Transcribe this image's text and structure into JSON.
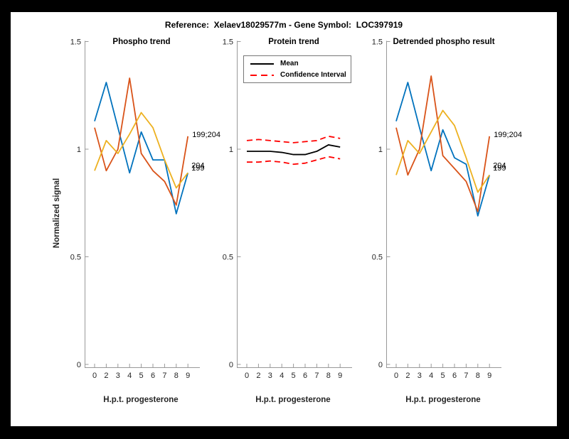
{
  "figure": {
    "title": "Reference:  Xelaev18029577m - Gene Symbol:  LOC397919",
    "background_color": "#000000",
    "paper_color": "#ffffff"
  },
  "palette": {
    "blue": "#0072BD",
    "orange": "#D95319",
    "yellow": "#EDB120",
    "red": "#FF0000",
    "black": "#000000",
    "axis_line": "#999999",
    "tick_text": "#262626"
  },
  "legend": {
    "items": [
      {
        "label": "Mean",
        "style": "solid",
        "color": "#000000"
      },
      {
        "label": "Confidence Interval",
        "style": "dashed",
        "color": "#FF0000"
      }
    ],
    "position": "top-left-of-middle-plot"
  },
  "axis_shared": {
    "xlabel": "H.p.t. progesterone",
    "ylabel": "Normalized signal",
    "x_tick_labels": [
      "0",
      "2",
      "3",
      "4",
      "5",
      "6",
      "7",
      "8",
      "9"
    ],
    "y_tick_labels": [
      "0",
      "0.5",
      "1",
      "1.5"
    ],
    "y_ticks": [
      0,
      0.5,
      1,
      1.5
    ],
    "ylim": [
      0,
      1.5
    ],
    "grid": false
  },
  "chart_data": [
    {
      "type": "line",
      "title": "Phospho trend",
      "x_labels": [
        "0",
        "2",
        "3",
        "4",
        "5",
        "6",
        "7",
        "8",
        "9"
      ],
      "xlabel": "H.p.t. progesterone",
      "ylabel": "Normalized signal",
      "ylim": [
        0,
        1.5
      ],
      "yticks": [
        0,
        0.5,
        1,
        1.5
      ],
      "series": [
        {
          "name": "phospho-site-blue",
          "color": "#0072BD",
          "dash": "none",
          "values": [
            1.13,
            1.31,
            1.1,
            0.89,
            1.08,
            0.95,
            0.95,
            0.7,
            0.89
          ]
        },
        {
          "name": "phospho-site-orange",
          "color": "#D95319",
          "dash": "none",
          "values": [
            1.1,
            0.9,
            1.0,
            1.33,
            0.98,
            0.9,
            0.85,
            0.74,
            1.06
          ]
        },
        {
          "name": "phospho-site-yellow",
          "color": "#EDB120",
          "dash": "none",
          "values": [
            0.9,
            1.04,
            0.98,
            1.07,
            1.17,
            1.1,
            0.95,
            0.82,
            0.89
          ]
        }
      ],
      "annotations": [
        {
          "text": "199;204",
          "xi": 8,
          "v": 1.07,
          "dx": 6
        },
        {
          "text": "204",
          "xi": 8,
          "v": 0.925,
          "dx": 5
        },
        {
          "text": "199",
          "xi": 8,
          "v": 0.915,
          "dx": 5
        }
      ]
    },
    {
      "type": "line",
      "title": "Protein trend",
      "x_labels": [
        "0",
        "2",
        "3",
        "4",
        "5",
        "6",
        "7",
        "8",
        "9"
      ],
      "xlabel": "H.p.t. progesterone",
      "ylim": [
        0,
        1.5
      ],
      "yticks": [
        0,
        0.5,
        1,
        1.5
      ],
      "legend_entries": [
        "Mean",
        "Confidence Interval"
      ],
      "series": [
        {
          "name": "confidence-upper",
          "color": "#FF0000",
          "dash": "8 5",
          "values": [
            1.04,
            1.045,
            1.04,
            1.035,
            1.03,
            1.035,
            1.04,
            1.06,
            1.05
          ]
        },
        {
          "name": "confidence-lower",
          "color": "#FF0000",
          "dash": "8 5",
          "values": [
            0.94,
            0.94,
            0.945,
            0.94,
            0.93,
            0.935,
            0.95,
            0.965,
            0.955
          ]
        },
        {
          "name": "mean",
          "color": "#000000",
          "dash": "none",
          "values": [
            0.99,
            0.99,
            0.99,
            0.985,
            0.975,
            0.975,
            0.99,
            1.02,
            1.01
          ]
        }
      ],
      "annotations": []
    },
    {
      "type": "line",
      "title": "Detrended phospho result",
      "x_labels": [
        "0",
        "2",
        "3",
        "4",
        "5",
        "6",
        "7",
        "8",
        "9"
      ],
      "xlabel": "H.p.t. progesterone",
      "ylim": [
        0,
        1.5
      ],
      "yticks": [
        0,
        0.5,
        1,
        1.5
      ],
      "series": [
        {
          "name": "phospho-site-blue",
          "color": "#0072BD",
          "dash": "none",
          "values": [
            1.13,
            1.31,
            1.1,
            0.9,
            1.09,
            0.96,
            0.93,
            0.69,
            0.88
          ]
        },
        {
          "name": "phospho-site-orange",
          "color": "#D95319",
          "dash": "none",
          "values": [
            1.1,
            0.88,
            1.0,
            1.34,
            0.97,
            0.91,
            0.85,
            0.71,
            1.06
          ]
        },
        {
          "name": "phospho-site-yellow",
          "color": "#EDB120",
          "dash": "none",
          "values": [
            0.88,
            1.04,
            0.98,
            1.08,
            1.18,
            1.11,
            0.96,
            0.8,
            0.88
          ]
        }
      ],
      "annotations": [
        {
          "text": "199;204",
          "xi": 8,
          "v": 1.07,
          "dx": 6
        },
        {
          "text": "204",
          "xi": 8,
          "v": 0.925,
          "dx": 5
        },
        {
          "text": "199",
          "xi": 8,
          "v": 0.915,
          "dx": 5
        }
      ]
    }
  ]
}
